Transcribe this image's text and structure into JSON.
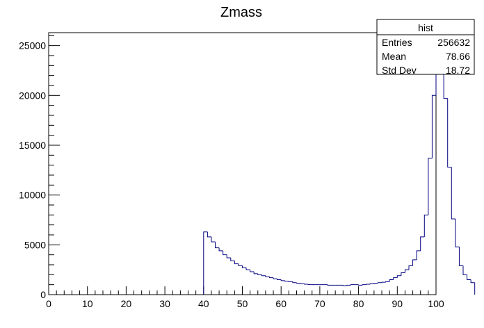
{
  "chart_data": {
    "type": "histogram",
    "title": "Zmass",
    "xlabel": "",
    "ylabel": "",
    "xlim": [
      0,
      100
    ],
    "ylim": [
      0,
      26300
    ],
    "bin_width": 1,
    "x_ticks": [
      0,
      10,
      20,
      30,
      40,
      50,
      60,
      70,
      80,
      90,
      100
    ],
    "y_ticks": [
      0,
      5000,
      10000,
      15000,
      20000,
      25000
    ],
    "bins_start": 40,
    "values": [
      6300,
      5800,
      5300,
      4700,
      4400,
      4000,
      3700,
      3400,
      3100,
      2900,
      2700,
      2500,
      2300,
      2100,
      2000,
      1900,
      1800,
      1700,
      1600,
      1500,
      1400,
      1350,
      1300,
      1200,
      1150,
      1100,
      1050,
      1000,
      1000,
      1000,
      1000,
      1000,
      950,
      950,
      950,
      950,
      900,
      950,
      1000,
      1000,
      950,
      1000,
      1050,
      1100,
      1150,
      1200,
      1250,
      1300,
      1500,
      1700,
      1900,
      2200,
      2500,
      2900,
      3500,
      4400,
      5800,
      8000,
      13700,
      20000,
      26300,
      26300,
      19700,
      12800,
      7600,
      4800,
      2900,
      2000,
      1500,
      1200
    ],
    "stats_box": {
      "title": "hist",
      "rows": [
        {
          "label": "Entries",
          "value": "256632"
        },
        {
          "label": "Mean",
          "value": "78.66"
        },
        {
          "label": "Std Dev",
          "value": "18.72"
        }
      ]
    },
    "line_color": "#000080",
    "frame_color": "#000000",
    "grid": false
  }
}
